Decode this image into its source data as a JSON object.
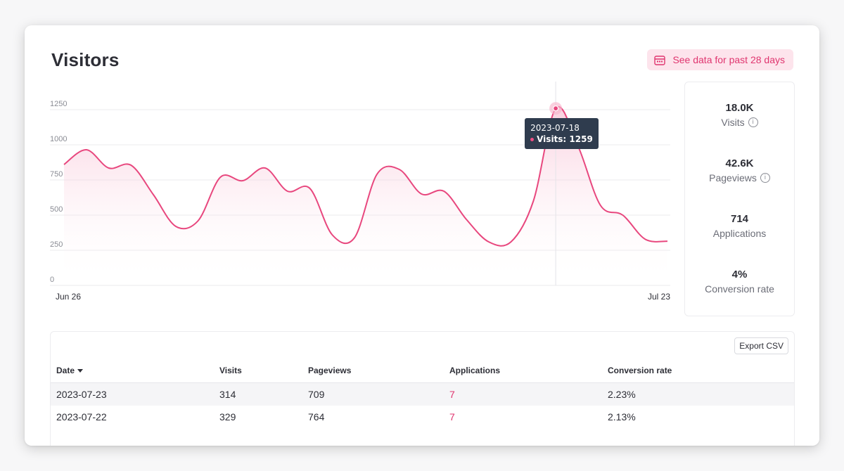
{
  "header": {
    "title": "Visitors",
    "range_label": "See data for past 28 days",
    "range_icon": "calendar-icon"
  },
  "chart_data": {
    "type": "area",
    "x": [
      "2023-06-26",
      "2023-06-27",
      "2023-06-28",
      "2023-06-29",
      "2023-06-30",
      "2023-07-01",
      "2023-07-02",
      "2023-07-03",
      "2023-07-04",
      "2023-07-05",
      "2023-07-06",
      "2023-07-07",
      "2023-07-08",
      "2023-07-09",
      "2023-07-10",
      "2023-07-11",
      "2023-07-12",
      "2023-07-13",
      "2023-07-14",
      "2023-07-15",
      "2023-07-16",
      "2023-07-17",
      "2023-07-18",
      "2023-07-19",
      "2023-07-20",
      "2023-07-21",
      "2023-07-22",
      "2023-07-23"
    ],
    "series": [
      {
        "values": [
          860,
          965,
          835,
          855,
          645,
          420,
          460,
          770,
          745,
          835,
          670,
          690,
          360,
          340,
          790,
          825,
          650,
          670,
          470,
          310,
          310,
          600,
          1259,
          990,
          570,
          500,
          329,
          314
        ]
      }
    ],
    "x_tick_labels": [
      "Jun 26",
      "Jul 23"
    ],
    "y_ticks": [
      0,
      250,
      500,
      750,
      1000,
      1250
    ],
    "ylim": [
      0,
      1250
    ],
    "grid": true,
    "color": "#e8477e",
    "tooltip": {
      "date": "2023-07-18",
      "label": "Visits: 1259",
      "index": 22
    }
  },
  "stats": [
    {
      "value": "18.0K",
      "label": "Visits",
      "info": true
    },
    {
      "value": "42.6K",
      "label": "Pageviews",
      "info": true
    },
    {
      "value": "714",
      "label": "Applications",
      "info": false
    },
    {
      "value": "4%",
      "label": "Conversion rate",
      "info": false
    }
  ],
  "table": {
    "export_label": "Export CSV",
    "columns": [
      "Date",
      "Visits",
      "Pageviews",
      "Applications",
      "Conversion rate"
    ],
    "rows": [
      [
        "2023-07-23",
        "314",
        "709",
        "7",
        "2.23%"
      ],
      [
        "2023-07-22",
        "329",
        "764",
        "7",
        "2.13%"
      ]
    ]
  },
  "colors": {
    "accent": "#e8477e",
    "accent_bg": "#fde4ec",
    "tooltip_bg": "#2f3c4e"
  }
}
